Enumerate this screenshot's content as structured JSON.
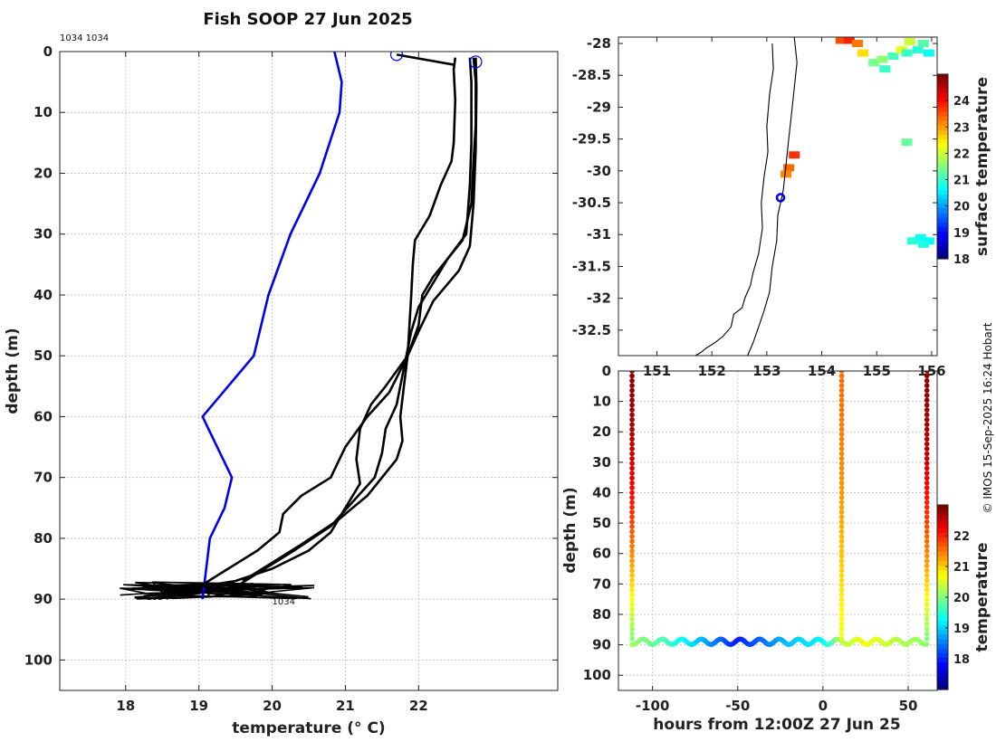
{
  "figure": {
    "title": "Fish SOOP 27 Jun 2025",
    "station_label": "1034 1034",
    "credit": "© IMOS 15-Sep-2025 16:24 Hobart"
  },
  "colors": {
    "climatology": "#0000ee",
    "profile": "#000000",
    "grid": "#c8c8c8",
    "marker": "#0000ee"
  },
  "chart_data": [
    {
      "id": "profile",
      "type": "line",
      "xlabel": "temperature (° C)",
      "ylabel": "depth (m)",
      "xlim": [
        17.1,
        23.9
      ],
      "ylim": [
        105,
        0
      ],
      "xticks": [
        18,
        19,
        20,
        21,
        22
      ],
      "yticks": [
        0,
        10,
        20,
        30,
        40,
        50,
        60,
        70,
        80,
        90,
        100
      ],
      "annotations": [
        "1034",
        "1034"
      ],
      "series": [
        {
          "name": "climatology",
          "x": [
            20.85,
            20.95,
            20.92,
            20.65,
            20.25,
            19.95,
            19.75,
            19.05,
            19.45,
            19.35,
            19.15,
            19.05
          ],
          "y": [
            0,
            5,
            10,
            20,
            30,
            40,
            50,
            60,
            70,
            75,
            80,
            90
          ]
        },
        {
          "name": "profile-1",
          "x": [
            22.5,
            22.48,
            22.5,
            22.48,
            22.45,
            22.3,
            22.15,
            21.95,
            21.92,
            21.9,
            21.85,
            21.6,
            21.3,
            21.0,
            20.8,
            20.4,
            20.15,
            20.1,
            19.8,
            19.4,
            19.0
          ],
          "y": [
            1,
            3,
            8,
            15,
            18,
            22,
            27,
            31,
            35,
            40,
            50,
            56,
            60,
            65,
            70,
            73,
            76,
            79,
            82,
            85,
            88
          ]
        },
        {
          "name": "profile-2",
          "x": [
            22.75,
            22.78,
            22.78,
            22.75,
            22.72,
            22.6,
            22.4,
            22.2,
            22.05,
            22.0,
            21.85,
            21.55,
            21.35,
            21.2,
            21.15,
            21.2,
            21.0,
            20.8,
            20.5,
            20.0,
            19.5,
            19.0
          ],
          "y": [
            1,
            5,
            12,
            18,
            25,
            31,
            34,
            37,
            40,
            45,
            50,
            55,
            58,
            62,
            67,
            71,
            75,
            79,
            82,
            85,
            87,
            88
          ]
        },
        {
          "name": "profile-3",
          "x": [
            22.7,
            22.72,
            22.72,
            22.7,
            22.65,
            22.4,
            22.2,
            22.0,
            21.9,
            21.8,
            21.7,
            21.55,
            21.5,
            21.4,
            21.1,
            20.8,
            20.3,
            19.9,
            19.5
          ],
          "y": [
            1,
            5,
            15,
            22,
            30,
            34,
            38,
            42,
            46,
            52,
            58,
            62,
            66,
            70,
            74,
            78,
            82,
            85,
            88
          ]
        },
        {
          "name": "profile-4",
          "x": [
            22.78,
            22.79,
            22.78,
            22.75,
            22.7,
            22.55,
            22.2,
            22.0,
            21.85,
            21.8,
            21.75,
            21.78,
            21.7,
            21.5,
            21.3,
            20.9,
            20.4,
            20.0,
            19.6
          ],
          "y": [
            1,
            6,
            16,
            25,
            32,
            36,
            41,
            46,
            50,
            55,
            60,
            64,
            67,
            70,
            73,
            77,
            81,
            84,
            87
          ]
        },
        {
          "name": "surface-connector",
          "x": [
            21.7,
            22.5
          ],
          "y": [
            0.5,
            2.2
          ]
        }
      ],
      "markers": [
        {
          "name": "start-marker",
          "x": 21.7,
          "y": 0.5
        },
        {
          "name": "end-marker",
          "x": 22.78,
          "y": 1.7
        }
      ],
      "bottom_cluster": {
        "xmin": 17.9,
        "xmax": 20.7,
        "ymin": 87.2,
        "ymax": 90.0
      }
    },
    {
      "id": "map",
      "type": "scatter",
      "xlim": [
        150.3,
        156.1
      ],
      "ylim": [
        -32.9,
        -27.9
      ],
      "xticks": [
        151,
        152,
        153,
        154,
        155,
        156
      ],
      "yticks": [
        -28,
        -28.5,
        -29,
        -29.5,
        -30,
        -30.5,
        -31,
        -31.5,
        -32,
        -32.5
      ],
      "ytick_labels": [
        "-28",
        "-28.5",
        "-29",
        "-29.5",
        "-30",
        "-30.5",
        "-31",
        "-31.5",
        "-32",
        "-32.5"
      ],
      "xtick_labels": [
        "151",
        "152",
        "153",
        "154",
        "155",
        "156"
      ],
      "vessel_position": {
        "lon": 153.25,
        "lat": -30.42
      },
      "coastline": {
        "lon": [
          153.1,
          153.12,
          153.05,
          153.0,
          153.02,
          152.95,
          152.9,
          152.92,
          152.85,
          152.75,
          152.7,
          152.6,
          152.55,
          152.4,
          152.35,
          152.2,
          152.05,
          151.9,
          151.8,
          151.7
        ],
        "lat": [
          -28.0,
          -28.4,
          -28.8,
          -29.3,
          -29.7,
          -30.1,
          -30.5,
          -30.9,
          -31.3,
          -31.6,
          -31.8,
          -32.0,
          -32.15,
          -32.25,
          -32.45,
          -32.6,
          -32.7,
          -32.78,
          -32.85,
          -32.9
        ]
      },
      "isobath": {
        "lon": [
          153.5,
          153.55,
          153.5,
          153.45,
          153.4,
          153.35,
          153.3,
          153.2,
          153.18,
          153.1,
          153.05,
          152.95,
          152.85,
          152.75,
          152.65
        ],
        "lat": [
          -27.9,
          -28.3,
          -28.7,
          -29.1,
          -29.5,
          -29.9,
          -30.3,
          -30.7,
          -31.1,
          -31.5,
          -31.9,
          -32.2,
          -32.45,
          -32.7,
          -32.9
        ]
      },
      "sst_patches": [
        {
          "lon": 154.35,
          "lat": -27.95,
          "temp": 23.6
        },
        {
          "lon": 154.5,
          "lat": -27.95,
          "temp": 23.9
        },
        {
          "lon": 154.65,
          "lat": -28.0,
          "temp": 23.3
        },
        {
          "lon": 154.75,
          "lat": -28.15,
          "temp": 22.6
        },
        {
          "lon": 154.95,
          "lat": -28.3,
          "temp": 21.4
        },
        {
          "lon": 155.1,
          "lat": -28.25,
          "temp": 21.6
        },
        {
          "lon": 155.3,
          "lat": -28.2,
          "temp": 21.1
        },
        {
          "lon": 155.45,
          "lat": -28.1,
          "temp": 22.2
        },
        {
          "lon": 155.55,
          "lat": -28.15,
          "temp": 21.0
        },
        {
          "lon": 155.75,
          "lat": -28.1,
          "temp": 20.9
        },
        {
          "lon": 155.95,
          "lat": -28.15,
          "temp": 20.7
        },
        {
          "lon": 155.6,
          "lat": -27.97,
          "temp": 22.0
        },
        {
          "lon": 155.85,
          "lat": -28.0,
          "temp": 21.2
        },
        {
          "lon": 155.15,
          "lat": -28.4,
          "temp": 21.0
        },
        {
          "lon": 153.5,
          "lat": -29.75,
          "temp": 23.8
        },
        {
          "lon": 153.4,
          "lat": -29.95,
          "temp": 23.4
        },
        {
          "lon": 153.35,
          "lat": -30.05,
          "temp": 23.2
        },
        {
          "lon": 155.55,
          "lat": -29.55,
          "temp": 21.3
        },
        {
          "lon": 155.65,
          "lat": -31.1,
          "temp": 20.9
        },
        {
          "lon": 155.8,
          "lat": -31.05,
          "temp": 20.7
        },
        {
          "lon": 155.95,
          "lat": -31.1,
          "temp": 20.6
        },
        {
          "lon": 155.85,
          "lat": -31.15,
          "temp": 20.8
        }
      ]
    },
    {
      "id": "map-colorbar",
      "type": "heatmap",
      "label": "surface temperature",
      "range": [
        18,
        25
      ],
      "ticks": [
        18,
        19,
        20,
        21,
        22,
        23,
        24
      ]
    },
    {
      "id": "section",
      "type": "scatter",
      "xlabel": "hours from 12:00Z 27 Jun 25",
      "ylabel": "depth (m)",
      "xlim": [
        -120,
        67
      ],
      "ylim": [
        105,
        0
      ],
      "xticks": [
        -100,
        -50,
        0,
        50
      ],
      "yticks": [
        0,
        10,
        20,
        30,
        40,
        50,
        60,
        70,
        80,
        90,
        100
      ],
      "casts": [
        {
          "hour": -112,
          "surface_temp": 22.9,
          "bottom_temp": 20.0,
          "bottom_depth": 88
        },
        {
          "hour": 11,
          "surface_temp": 21.6,
          "bottom_temp": 20.6,
          "bottom_depth": 88
        },
        {
          "hour": 61,
          "surface_temp": 22.9,
          "bottom_temp": 20.0,
          "bottom_depth": 88
        }
      ],
      "bottom_track": {
        "hours": [
          -112,
          -90,
          -70,
          -50,
          -35,
          -20,
          0,
          11,
          25,
          40,
          61
        ],
        "temps": [
          20.2,
          19.6,
          18.8,
          17.9,
          18.4,
          18.9,
          19.2,
          20.3,
          20.7,
          20.4,
          20.1
        ]
      }
    },
    {
      "id": "section-colorbar",
      "type": "heatmap",
      "label": "temperature",
      "range": [
        17,
        23
      ],
      "ticks": [
        18,
        19,
        20,
        21,
        22
      ]
    }
  ]
}
